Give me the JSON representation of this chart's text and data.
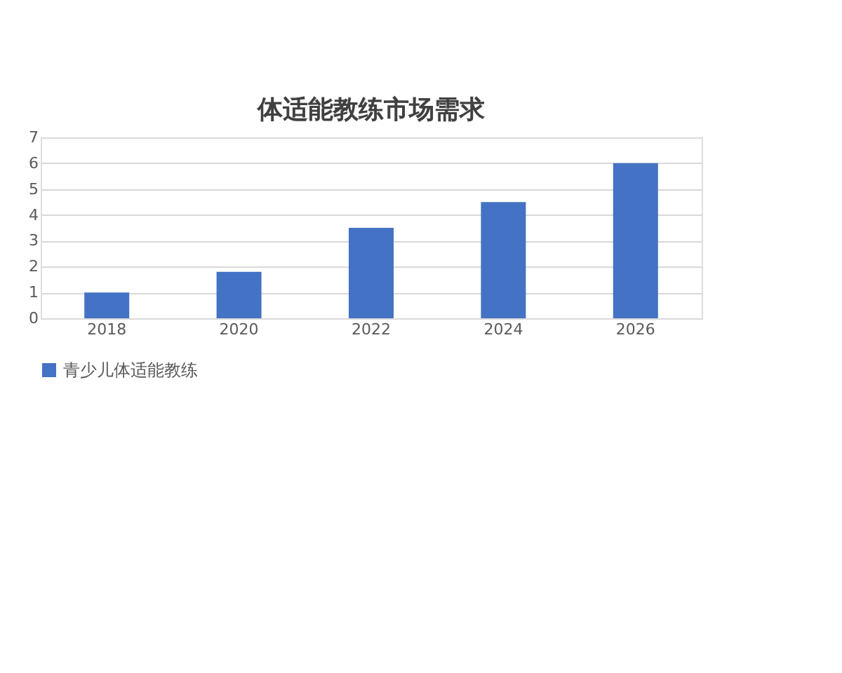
{
  "chart_data": {
    "type": "bar",
    "title": "体适能教练市场需求",
    "categories": [
      "2018",
      "2020",
      "2022",
      "2024",
      "2026"
    ],
    "series": [
      {
        "name": "青少儿体适能教练",
        "color": "#4472c4",
        "values": [
          1,
          1.8,
          3.5,
          4.5,
          6
        ]
      }
    ],
    "ylim": [
      0,
      7
    ],
    "yticks": [
      0,
      1,
      2,
      3,
      4,
      5,
      6,
      7
    ],
    "grid": "y",
    "legend": "bottom"
  }
}
